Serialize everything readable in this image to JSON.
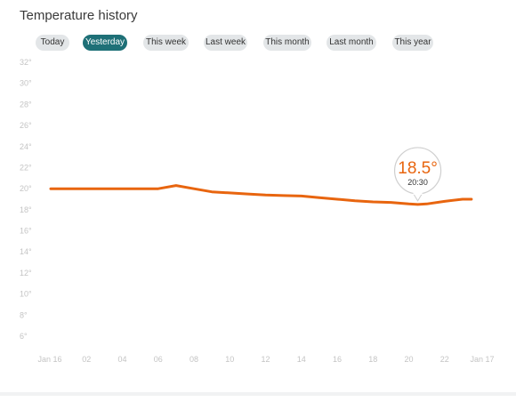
{
  "header": {
    "title": "Temperature history"
  },
  "ranges": [
    {
      "label": "Today",
      "active": false
    },
    {
      "label": "Yesterday",
      "active": true
    },
    {
      "label": "This week",
      "active": false
    },
    {
      "label": "Last week",
      "active": false
    },
    {
      "label": "This month",
      "active": false
    },
    {
      "label": "Last month",
      "active": false
    },
    {
      "label": "This year",
      "active": false
    }
  ],
  "tooltip": {
    "value": "18.5°",
    "time": "20:30"
  },
  "colors": {
    "line": "#e8650f",
    "active_button": "#1e7077",
    "button": "#e3e6e8",
    "axis_text": "#c4c4c4"
  },
  "chart_data": {
    "type": "line",
    "title": "",
    "xlabel": "",
    "ylabel": "",
    "ylim": [
      6,
      32
    ],
    "yticks": [
      "32°",
      "30°",
      "28°",
      "26°",
      "24°",
      "22°",
      "20°",
      "18°",
      "16°",
      "14°",
      "12°",
      "10°",
      "8°",
      "6°"
    ],
    "xticks": [
      "Jan 16",
      "02",
      "04",
      "06",
      "08",
      "10",
      "12",
      "14",
      "16",
      "18",
      "20",
      "22",
      "Jan 17"
    ],
    "xlim": [
      0,
      24
    ],
    "grid": false,
    "series": [
      {
        "x": [
          0,
          1,
          2,
          3,
          4,
          5,
          6,
          7,
          8,
          9,
          10,
          11,
          12,
          13,
          14,
          15,
          16,
          17,
          18,
          19,
          20,
          20.5,
          21,
          22,
          23,
          23.5
        ],
        "values": [
          20.0,
          20.0,
          20.0,
          20.0,
          20.0,
          20.0,
          20.0,
          20.3,
          20.0,
          19.7,
          19.6,
          19.5,
          19.4,
          19.35,
          19.3,
          19.15,
          19.0,
          18.85,
          18.75,
          18.7,
          18.55,
          18.5,
          18.55,
          18.8,
          19.0,
          19.0
        ]
      }
    ],
    "highlight": {
      "x": 20.5,
      "value": 18.5,
      "label": "18.5°",
      "time": "20:30"
    }
  }
}
